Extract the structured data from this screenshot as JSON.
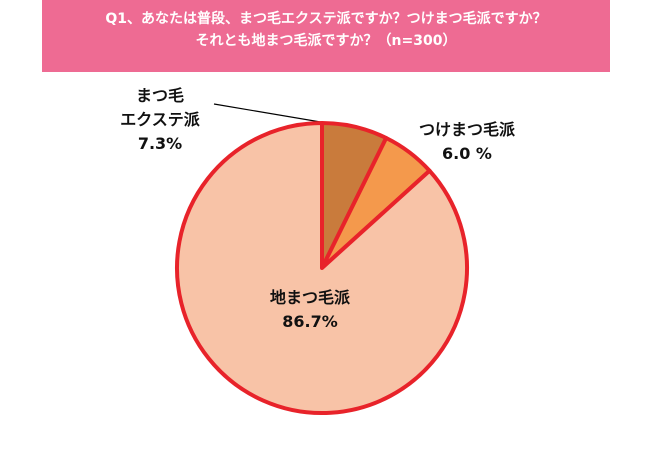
{
  "chart_data": {
    "type": "pie",
    "title": "Q1、あなたは普段、まつ毛エクステ派ですか？つけまつ毛派ですか？\nそれとも地まつ毛派ですか？（n=300）",
    "categories": [
      "まつ毛\nエクステ派",
      "つけまつ毛派",
      "地まつ毛派"
    ],
    "values": [
      7.3,
      6.0,
      86.7
    ],
    "value_labels": [
      "7.3%",
      "6.0 %",
      "86.7%"
    ],
    "colors": [
      "#c97b3c",
      "#f4994c",
      "#f8c3a7"
    ],
    "edge_color": "#e8232a"
  }
}
